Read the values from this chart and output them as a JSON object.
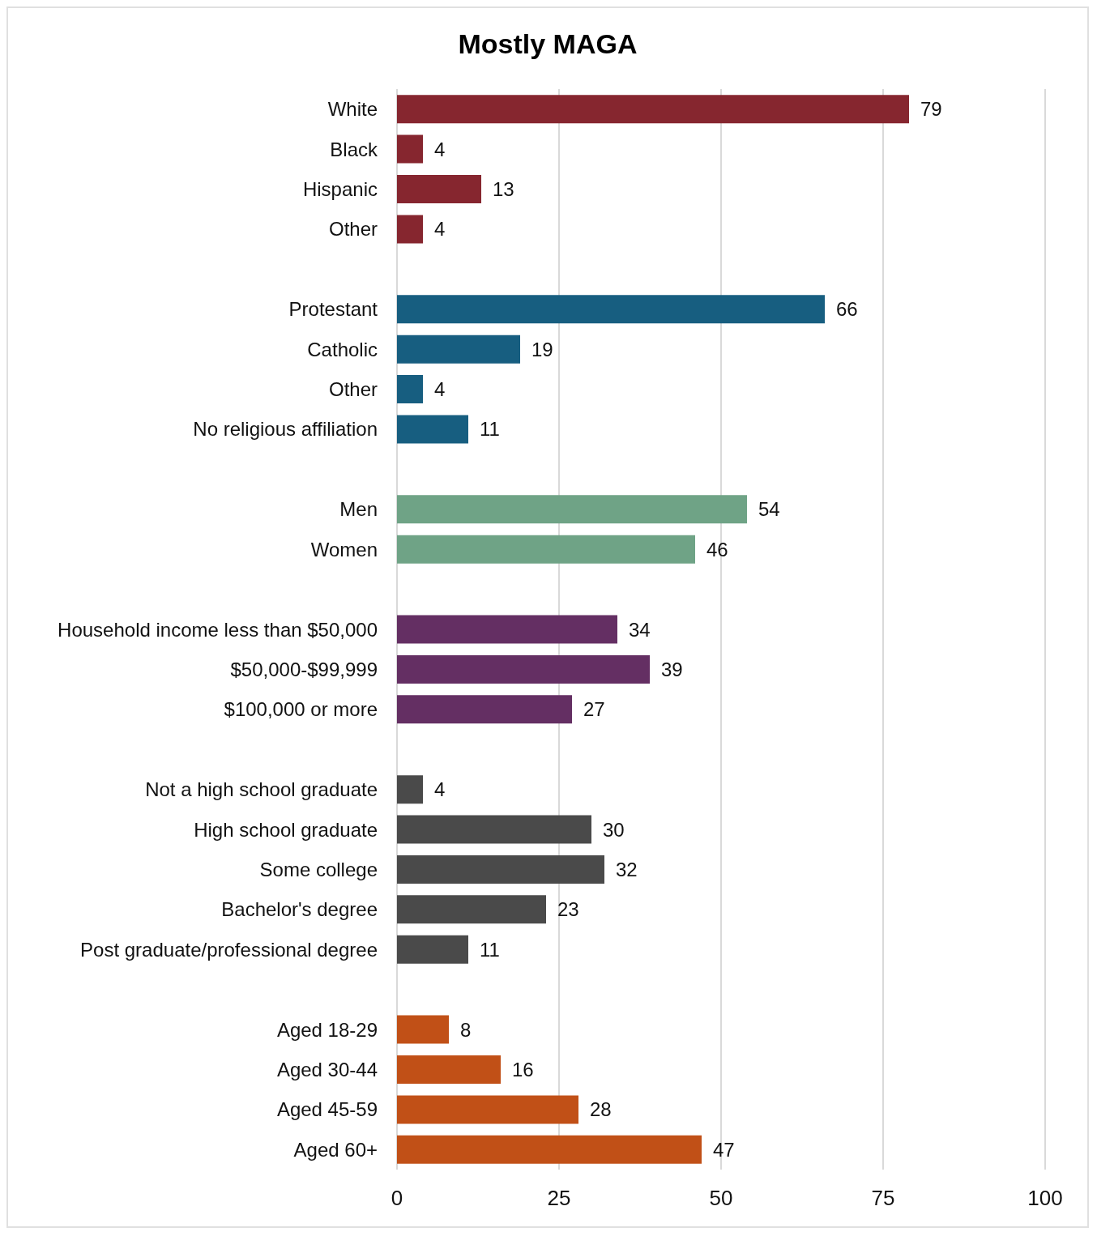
{
  "chart_data": {
    "type": "bar",
    "orientation": "horizontal",
    "title": "Mostly MAGA",
    "categories": [
      "White",
      "Black",
      "Hispanic",
      "Other",
      null,
      "Protestant",
      "Catholic",
      "Other",
      "No religious affiliation",
      null,
      "Men",
      "Women",
      null,
      "Household income less than $50,000",
      "$50,000-$99,999",
      "$100,000 or more",
      null,
      "Not a high school graduate",
      "High school graduate",
      "Some college",
      "Bachelor's degree",
      "Post graduate/professional degree",
      null,
      "Aged 18-29",
      "Aged 30-44",
      "Aged 45-59",
      "Aged 60+"
    ],
    "values": [
      79,
      4,
      13,
      4,
      null,
      66,
      19,
      4,
      11,
      null,
      54,
      46,
      null,
      34,
      39,
      27,
      null,
      4,
      30,
      32,
      23,
      11,
      null,
      8,
      16,
      28,
      47
    ],
    "colors": [
      "#86262f",
      "#86262f",
      "#86262f",
      "#86262f",
      null,
      "#175e80",
      "#175e80",
      "#175e80",
      "#175e80",
      null,
      "#6fa386",
      "#6fa386",
      null,
      "#642f63",
      "#642f63",
      "#642f63",
      null,
      "#4a4a4a",
      "#4a4a4a",
      "#4a4a4a",
      "#4a4a4a",
      "#4a4a4a",
      null,
      "#c15017",
      "#c15017",
      "#c15017",
      "#c15017"
    ],
    "xlim": [
      0,
      100
    ],
    "xticks": [
      0,
      25,
      50,
      75,
      100
    ],
    "grid": "x",
    "data_labels": true
  }
}
